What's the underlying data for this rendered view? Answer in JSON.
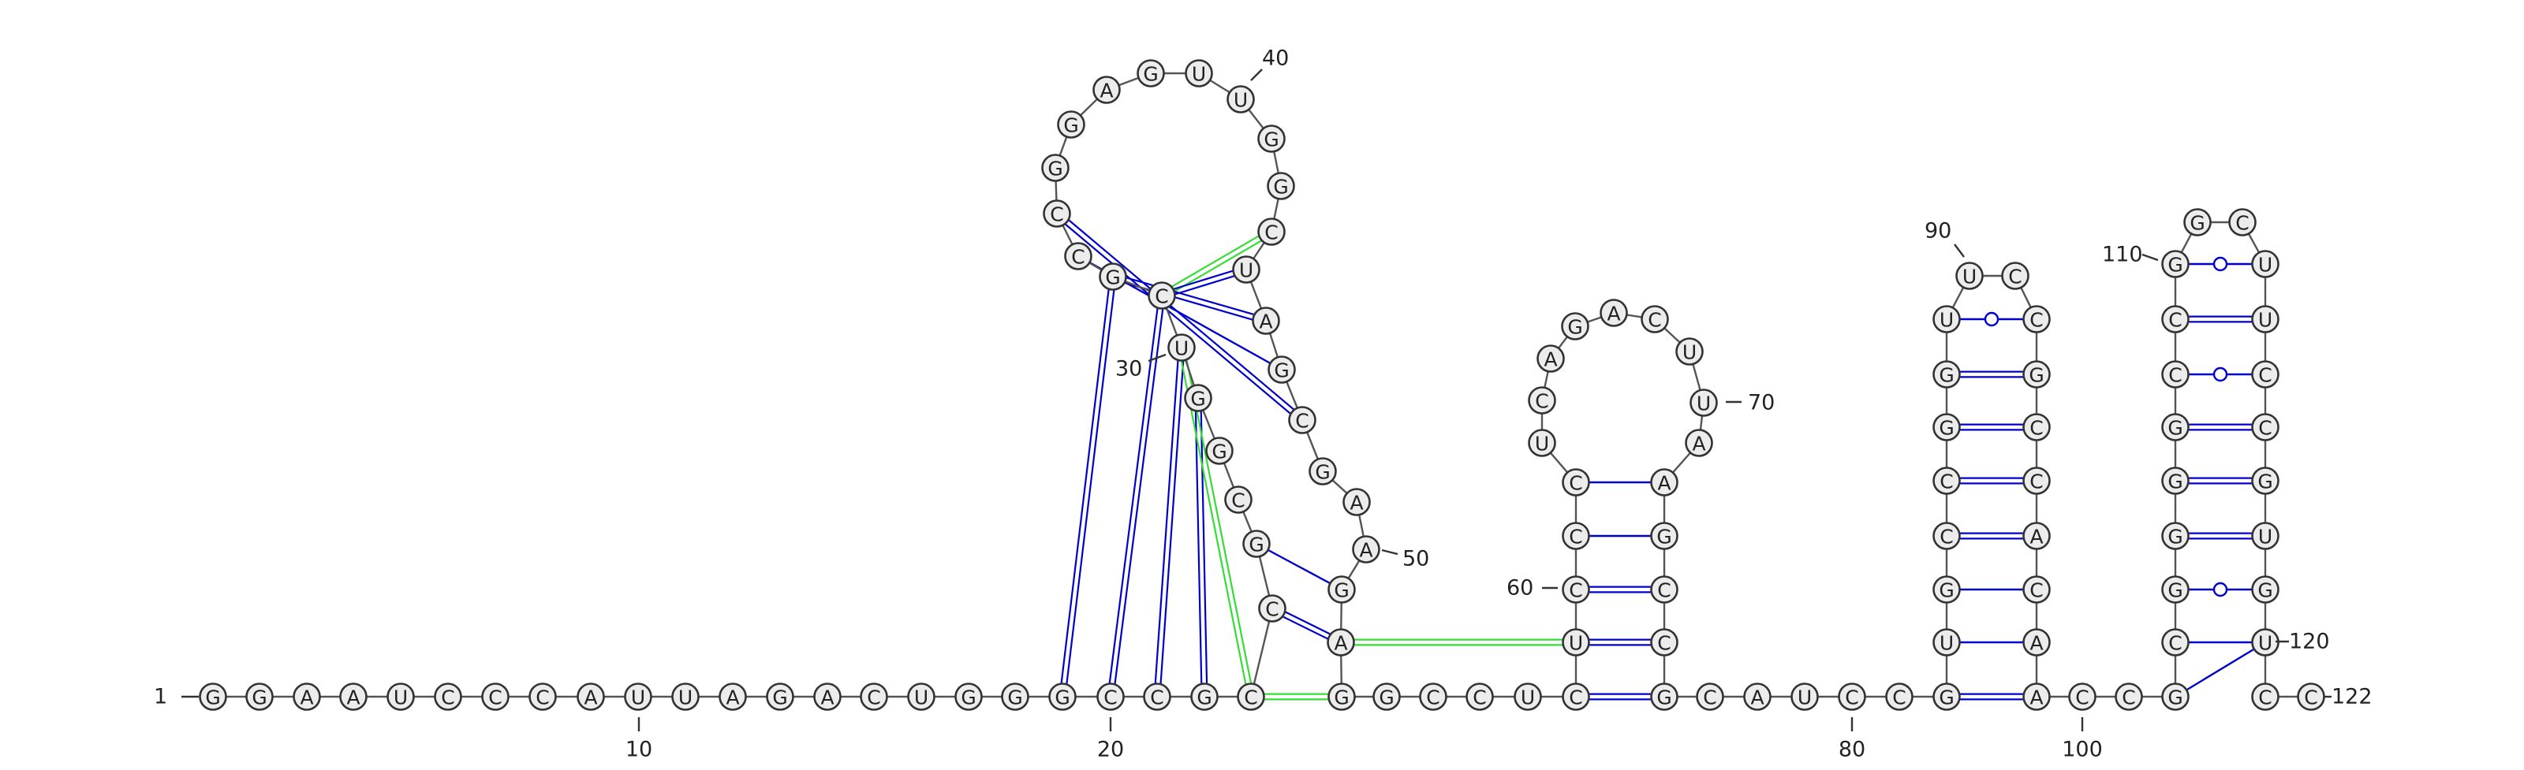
{
  "sequence": "GGAAUCCCAUUAGACUGGGCCGCCGCGGUCGCCGGAGUUGGCUAGCGAAGAGGCCUCUCCCUCAGACUUAAGCCGCAUCCGUGCCGGUUCCGCCACAACCGCGGGGCCGGCUUCCGUGCUCC",
  "labels": {
    "num1": "1",
    "num10": "10",
    "num20": "20",
    "num30": "30",
    "num40": "40",
    "num50": "50",
    "num60": "60",
    "num70": "70",
    "num80": "80",
    "num90": "90",
    "num100": "100",
    "num110": "110",
    "num120": "120",
    "num122": "122"
  },
  "base_pairs": [
    [
      20,
      57
    ],
    [
      21,
      56
    ],
    [
      22,
      55
    ],
    [
      23,
      54
    ],
    [
      24,
      31
    ],
    [
      25,
      30
    ],
    [
      26,
      29
    ],
    [
      27,
      66
    ],
    [
      28,
      67
    ],
    [
      29,
      68
    ],
    [
      30,
      69
    ],
    [
      31,
      70
    ],
    [
      32,
      71
    ],
    [
      33,
      72
    ],
    [
      34,
      73
    ],
    [
      37,
      48
    ],
    [
      38,
      47
    ],
    [
      39,
      46
    ],
    [
      40,
      45
    ],
    [
      63,
      74
    ],
    [
      64,
      73
    ],
    [
      65,
      72
    ],
    [
      66,
      71
    ],
    [
      84,
      95
    ],
    [
      85,
      94
    ],
    [
      86,
      93
    ],
    [
      87,
      92
    ],
    [
      88,
      91
    ],
    [
      103,
      114
    ],
    [
      104,
      113
    ],
    [
      105,
      112
    ],
    [
      106,
      111
    ],
    [
      107,
      110
    ]
  ],
  "colors": {
    "canonical_pair": "#0000cc",
    "gu_pair": "#0000cc",
    "tertiary_pair": "#33dd33",
    "nucleotide_fill": "#ececec",
    "nucleotide_stroke": "#333333"
  }
}
